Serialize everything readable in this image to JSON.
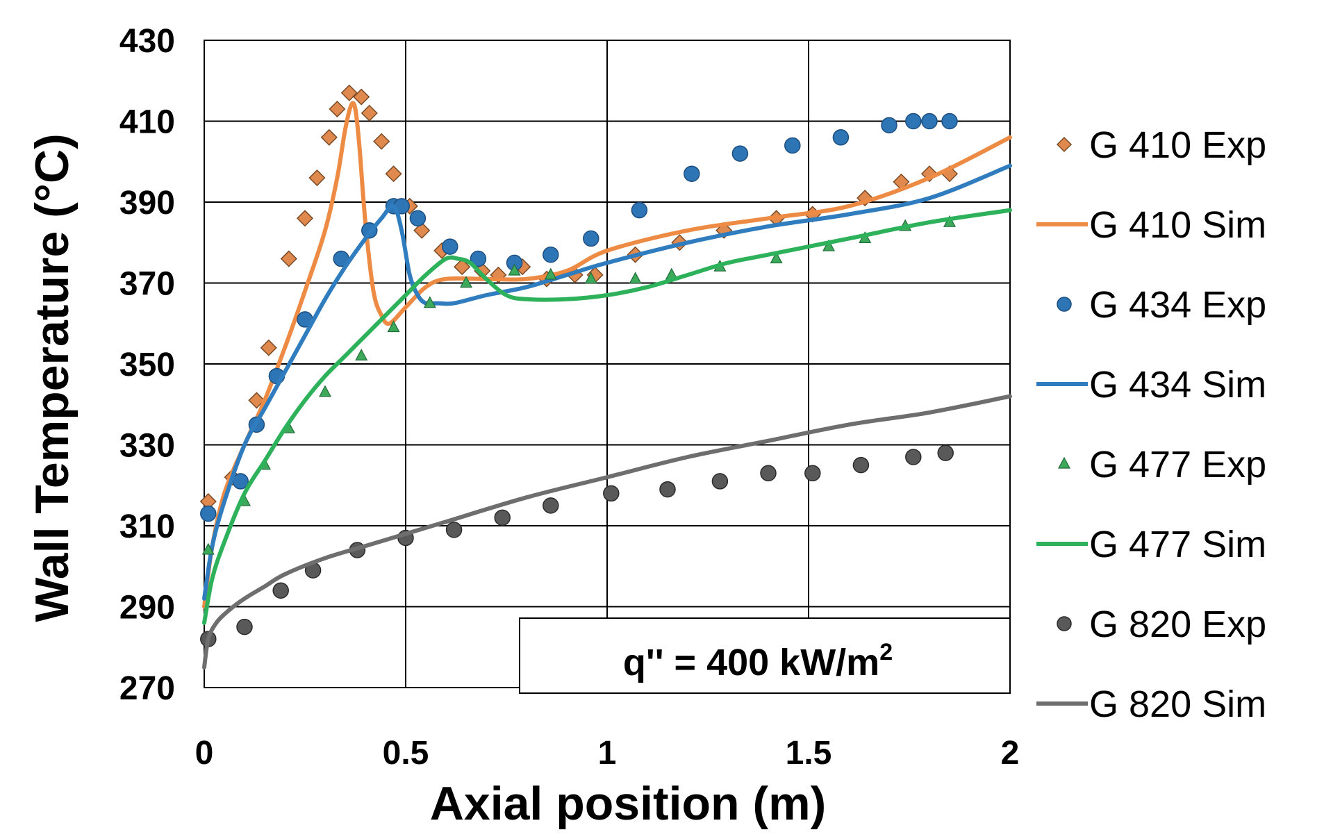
{
  "chart_data": {
    "type": "scatter",
    "title": "",
    "xlabel": "Axial position (m)",
    "ylabel": "Wall Temperature (°C)",
    "xlim": [
      0,
      2
    ],
    "ylim": [
      270,
      430
    ],
    "xticks": [
      0,
      0.5,
      1,
      1.5,
      2
    ],
    "xtick_labels": [
      "0",
      "0.5",
      "1",
      "1.5",
      "2"
    ],
    "yticks": [
      270,
      290,
      310,
      330,
      350,
      370,
      390,
      410,
      430
    ],
    "ytick_labels": [
      "270",
      "290",
      "310",
      "330",
      "350",
      "370",
      "390",
      "410",
      "430"
    ],
    "grid": true,
    "legend_position": "right",
    "annotation": {
      "prefix": "q'' = 400 kW/m",
      "superscript": "2"
    },
    "series": [
      {
        "name": "G 410 Exp",
        "kind": "markers",
        "marker": "diamond",
        "color": "#E0894E",
        "x": [
          0.01,
          0.07,
          0.13,
          0.16,
          0.21,
          0.25,
          0.28,
          0.31,
          0.33,
          0.36,
          0.39,
          0.41,
          0.44,
          0.47,
          0.51,
          0.54,
          0.59,
          0.64,
          0.69,
          0.73,
          0.79,
          0.85,
          0.92,
          0.97,
          1.07,
          1.18,
          1.29,
          1.42,
          1.51,
          1.64,
          1.73,
          1.8,
          1.85
        ],
        "y": [
          316,
          322,
          341,
          354,
          376,
          386,
          396,
          406,
          413,
          417,
          416,
          412,
          405,
          397,
          389,
          383,
          378,
          374,
          373,
          372,
          374,
          371,
          372,
          372,
          377,
          380,
          383,
          386,
          387,
          391,
          395,
          397,
          397
        ]
      },
      {
        "name": "G 410 Sim",
        "kind": "line",
        "color": "#ED8B45",
        "x": [
          0.0,
          0.02,
          0.05,
          0.1,
          0.15,
          0.2,
          0.25,
          0.3,
          0.33,
          0.35,
          0.365,
          0.375,
          0.385,
          0.4,
          0.42,
          0.44,
          0.46,
          0.5,
          0.55,
          0.6,
          0.7,
          0.8,
          0.9,
          1.0,
          1.2,
          1.4,
          1.6,
          1.8,
          2.0
        ],
        "y": [
          290,
          305,
          318,
          330,
          341,
          354,
          368,
          383,
          396,
          408,
          414,
          413,
          404,
          385,
          368,
          362,
          360,
          364,
          369,
          371,
          371,
          371,
          373,
          378,
          383,
          386,
          389,
          396,
          406
        ]
      },
      {
        "name": "G 434 Exp",
        "kind": "markers",
        "marker": "circle",
        "color": "#2E75B6",
        "x": [
          0.01,
          0.09,
          0.13,
          0.18,
          0.25,
          0.34,
          0.41,
          0.47,
          0.49,
          0.53,
          0.61,
          0.68,
          0.77,
          0.86,
          0.96,
          1.08,
          1.21,
          1.33,
          1.46,
          1.58,
          1.7,
          1.76,
          1.8,
          1.85
        ],
        "y": [
          313,
          321,
          335,
          347,
          361,
          376,
          383,
          389,
          389,
          386,
          379,
          376,
          375,
          377,
          381,
          388,
          397,
          402,
          404,
          406,
          409,
          410,
          410,
          410
        ]
      },
      {
        "name": "G 434 Sim",
        "kind": "line",
        "color": "#2F7CBF",
        "x": [
          0.0,
          0.02,
          0.05,
          0.1,
          0.15,
          0.2,
          0.25,
          0.3,
          0.35,
          0.4,
          0.44,
          0.47,
          0.49,
          0.51,
          0.53,
          0.55,
          0.58,
          0.62,
          0.7,
          0.8,
          0.9,
          1.0,
          1.2,
          1.4,
          1.6,
          1.8,
          2.0
        ],
        "y": [
          292,
          305,
          316,
          330,
          339,
          348,
          357,
          366,
          374,
          381,
          386,
          389,
          383,
          372,
          367,
          365,
          365,
          365,
          367,
          369,
          372,
          375,
          380,
          384,
          387,
          391,
          399
        ]
      },
      {
        "name": "G 477 Exp",
        "kind": "markers",
        "marker": "triangle",
        "color": "#3DAA5B",
        "x": [
          0.01,
          0.1,
          0.15,
          0.21,
          0.3,
          0.39,
          0.47,
          0.56,
          0.65,
          0.77,
          0.86,
          0.96,
          1.07,
          1.16,
          1.28,
          1.42,
          1.55,
          1.64,
          1.74,
          1.85
        ],
        "y": [
          304,
          316,
          325,
          334,
          343,
          352,
          359,
          365,
          370,
          373,
          372,
          371,
          371,
          372,
          374,
          376,
          379,
          381,
          384,
          385
        ]
      },
      {
        "name": "G 477 Sim",
        "kind": "line",
        "color": "#2DB25B",
        "x": [
          0.0,
          0.02,
          0.05,
          0.1,
          0.15,
          0.2,
          0.25,
          0.3,
          0.35,
          0.4,
          0.45,
          0.5,
          0.55,
          0.6,
          0.63,
          0.66,
          0.7,
          0.75,
          0.8,
          0.9,
          1.0,
          1.1,
          1.2,
          1.3,
          1.4,
          1.6,
          1.8,
          2.0
        ],
        "y": [
          286,
          297,
          306,
          318,
          326,
          334,
          341,
          347,
          352,
          357,
          362,
          367,
          372,
          376,
          376,
          375,
          371,
          367,
          366,
          366,
          367,
          369,
          372,
          375,
          377,
          381,
          385,
          388
        ]
      },
      {
        "name": "G 820 Exp",
        "kind": "markers",
        "marker": "circle",
        "color": "#595959",
        "x": [
          0.01,
          0.1,
          0.19,
          0.27,
          0.38,
          0.5,
          0.62,
          0.74,
          0.86,
          1.01,
          1.15,
          1.28,
          1.4,
          1.51,
          1.63,
          1.76,
          1.84
        ],
        "y": [
          282,
          285,
          294,
          299,
          304,
          307,
          309,
          312,
          315,
          318,
          319,
          321,
          323,
          323,
          325,
          327,
          328
        ]
      },
      {
        "name": "G 820 Sim",
        "kind": "line",
        "color": "#6E6E6E",
        "x": [
          0.0,
          0.01,
          0.03,
          0.06,
          0.1,
          0.15,
          0.2,
          0.3,
          0.4,
          0.5,
          0.6,
          0.8,
          1.0,
          1.2,
          1.4,
          1.6,
          1.8,
          2.0
        ],
        "y": [
          275,
          282,
          286,
          289,
          292,
          295,
          298,
          302,
          305,
          308,
          311,
          317,
          322,
          327,
          331,
          335,
          338,
          342
        ]
      }
    ]
  }
}
